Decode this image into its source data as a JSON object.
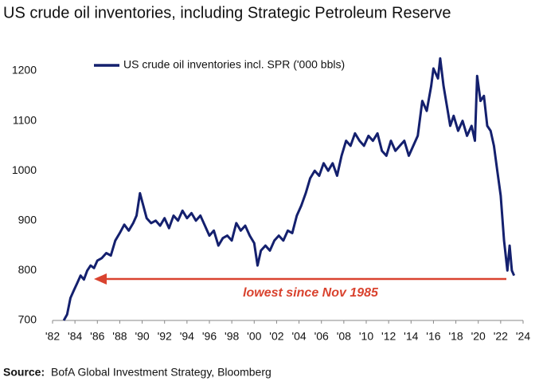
{
  "chart_data": {
    "type": "line",
    "title": "US crude oil inventories, including Strategic Petroleum Reserve",
    "x": [
      1983.0,
      1983.3,
      1983.6,
      1983.9,
      1984.2,
      1984.5,
      1984.8,
      1985.1,
      1985.4,
      1985.7,
      1986.0,
      1986.4,
      1986.8,
      1987.2,
      1987.6,
      1988.0,
      1988.4,
      1988.8,
      1989.2,
      1989.5,
      1989.8,
      1990.1,
      1990.4,
      1990.8,
      1991.2,
      1991.6,
      1992.0,
      1992.4,
      1992.8,
      1993.2,
      1993.6,
      1994.0,
      1994.4,
      1994.8,
      1995.2,
      1995.6,
      1996.0,
      1996.4,
      1996.8,
      1997.2,
      1997.6,
      1998.0,
      1998.4,
      1998.8,
      1999.2,
      1999.6,
      2000.0,
      2000.3,
      2000.6,
      2001.0,
      2001.4,
      2001.8,
      2002.2,
      2002.6,
      2003.0,
      2003.4,
      2003.8,
      2004.2,
      2004.6,
      2005.0,
      2005.4,
      2005.8,
      2006.2,
      2006.6,
      2007.0,
      2007.4,
      2007.8,
      2008.2,
      2008.6,
      2009.0,
      2009.4,
      2009.8,
      2010.2,
      2010.6,
      2011.0,
      2011.4,
      2011.8,
      2012.2,
      2012.6,
      2013.0,
      2013.4,
      2013.8,
      2014.2,
      2014.6,
      2015.0,
      2015.4,
      2015.8,
      2016.0,
      2016.4,
      2016.6,
      2016.9,
      2017.2,
      2017.5,
      2017.8,
      2018.2,
      2018.6,
      2019.0,
      2019.4,
      2019.7,
      2019.9,
      2020.2,
      2020.5,
      2020.8,
      2021.1,
      2021.4,
      2021.7,
      2022.0,
      2022.3,
      2022.6,
      2022.8,
      2023.0,
      2023.2
    ],
    "series": [
      {
        "name": "US crude oil inventories incl. SPR ('000 bbls)",
        "color": "#14206e",
        "values": [
          700,
          712,
          745,
          760,
          775,
          790,
          782,
          800,
          810,
          805,
          820,
          825,
          835,
          830,
          860,
          875,
          892,
          880,
          895,
          910,
          955,
          930,
          905,
          895,
          900,
          890,
          905,
          885,
          910,
          900,
          920,
          905,
          915,
          900,
          910,
          890,
          870,
          880,
          850,
          865,
          870,
          860,
          895,
          880,
          890,
          870,
          855,
          810,
          840,
          850,
          840,
          860,
          870,
          860,
          880,
          875,
          910,
          930,
          955,
          985,
          1000,
          990,
          1015,
          1000,
          1015,
          990,
          1030,
          1060,
          1050,
          1075,
          1060,
          1050,
          1070,
          1060,
          1075,
          1040,
          1030,
          1060,
          1040,
          1050,
          1060,
          1030,
          1050,
          1070,
          1140,
          1120,
          1170,
          1205,
          1185,
          1225,
          1170,
          1130,
          1090,
          1110,
          1080,
          1100,
          1070,
          1090,
          1060,
          1190,
          1140,
          1150,
          1090,
          1080,
          1050,
          1000,
          950,
          860,
          800,
          850,
          800,
          790
        ]
      }
    ],
    "xlim": [
      1982,
      2024
    ],
    "xticks": [
      {
        "value": 1982,
        "label": "'82"
      },
      {
        "value": 1984,
        "label": "'84"
      },
      {
        "value": 1986,
        "label": "'86"
      },
      {
        "value": 1988,
        "label": "'88"
      },
      {
        "value": 1990,
        "label": "'90"
      },
      {
        "value": 1992,
        "label": "'92"
      },
      {
        "value": 1994,
        "label": "'94"
      },
      {
        "value": 1996,
        "label": "'96"
      },
      {
        "value": 1998,
        "label": "'98"
      },
      {
        "value": 2000,
        "label": "'00"
      },
      {
        "value": 2002,
        "label": "'02"
      },
      {
        "value": 2004,
        "label": "'04"
      },
      {
        "value": 2006,
        "label": "'06"
      },
      {
        "value": 2008,
        "label": "'08"
      },
      {
        "value": 2010,
        "label": "'10"
      },
      {
        "value": 2012,
        "label": "'12"
      },
      {
        "value": 2014,
        "label": "'14"
      },
      {
        "value": 2016,
        "label": "'16"
      },
      {
        "value": 2018,
        "label": "'18"
      },
      {
        "value": 2020,
        "label": "'20"
      },
      {
        "value": 2022,
        "label": "'22"
      },
      {
        "value": 2024,
        "label": "'24"
      }
    ],
    "ylim": [
      700,
      1250
    ],
    "yticks": [
      700,
      800,
      900,
      1000,
      1100,
      1200
    ],
    "annotation": "lowest since Nov 1985",
    "source": {
      "label": "Source:",
      "text": "BofA Global Investment Strategy, Bloomberg"
    }
  }
}
